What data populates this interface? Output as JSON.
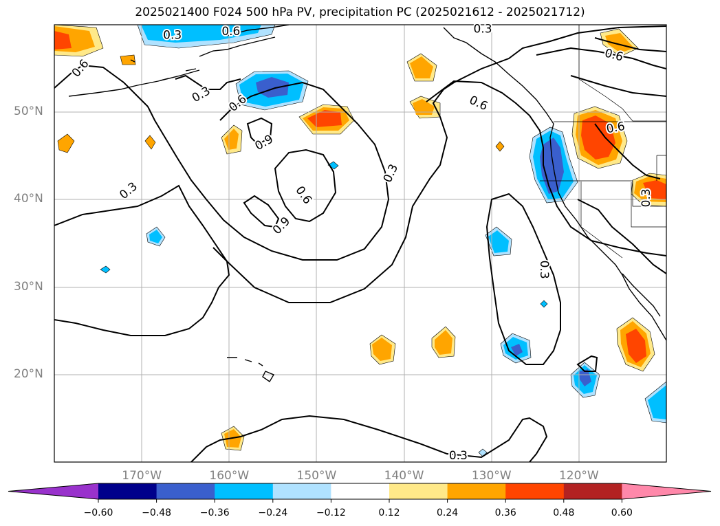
{
  "title": "2025021400 F024 500 hPa PV, precipitation PC (2025021612 - 2025021712)",
  "map": {
    "lon_range": [
      -180,
      -110
    ],
    "lat_range": [
      10,
      60
    ],
    "gridlines": true,
    "lat_labels": [
      {
        "lat": 50,
        "text": "50°N"
      },
      {
        "lat": 40,
        "text": "40°N"
      },
      {
        "lat": 30,
        "text": "30°N"
      },
      {
        "lat": 20,
        "text": "20°N"
      }
    ],
    "lon_labels": [
      {
        "lon": -170,
        "text": "170°W"
      },
      {
        "lon": -160,
        "text": "160°W"
      },
      {
        "lon": -150,
        "text": "150°W"
      },
      {
        "lon": -140,
        "text": "140°W"
      },
      {
        "lon": -130,
        "text": "130°W"
      },
      {
        "lon": -120,
        "text": "120°W"
      }
    ],
    "contour_labels": [
      {
        "text": "0.6",
        "lon": -177.0,
        "lat": 55.0,
        "angle": -50
      },
      {
        "text": "0.3",
        "lon": -166.5,
        "lat": 58.8,
        "angle": 0
      },
      {
        "text": "0.6",
        "lon": -159.8,
        "lat": 59.2,
        "angle": 0
      },
      {
        "text": "0.3",
        "lon": -163.2,
        "lat": 52.0,
        "angle": -30
      },
      {
        "text": "0.6",
        "lon": -159.0,
        "lat": 51.0,
        "angle": -40
      },
      {
        "text": "0.9",
        "lon": -156.0,
        "lat": 46.5,
        "angle": -30
      },
      {
        "text": "0.6",
        "lon": -151.5,
        "lat": 40.5,
        "angle": 55
      },
      {
        "text": "0.9",
        "lon": -154.0,
        "lat": 37.0,
        "angle": -45
      },
      {
        "text": "0.3",
        "lon": -171.5,
        "lat": 41.0,
        "angle": -40
      },
      {
        "text": "0.3",
        "lon": -141.5,
        "lat": 43.0,
        "angle": -65
      },
      {
        "text": "0.3",
        "lon": -131.0,
        "lat": 59.5,
        "angle": 0
      },
      {
        "text": "0.6",
        "lon": -131.5,
        "lat": 51.0,
        "angle": 25
      },
      {
        "text": "0.6",
        "lon": -116.0,
        "lat": 56.5,
        "angle": 15
      },
      {
        "text": "0.3",
        "lon": -124.0,
        "lat": 32.0,
        "angle": 90
      },
      {
        "text": "0.6",
        "lon": -115.8,
        "lat": 48.2,
        "angle": -10
      },
      {
        "text": "0.3",
        "lon": -112.3,
        "lat": 40.2,
        "angle": -90
      },
      {
        "text": "0.3",
        "lon": -133.8,
        "lat": 10.7,
        "angle": 0
      }
    ]
  },
  "colorbar": {
    "ticks": [
      "−0.60",
      "−0.48",
      "−0.36",
      "−0.24",
      "−0.12",
      "0.12",
      "0.24",
      "0.36",
      "0.48",
      "0.60"
    ],
    "colors": [
      "#9932cc",
      "#00008b",
      "#3a5fcd",
      "#00bfff",
      "#b0e2ff",
      "#ffffff",
      "#ffe989",
      "#ffa500",
      "#ff4500",
      "#b22222",
      "#ff88aa"
    ]
  }
}
